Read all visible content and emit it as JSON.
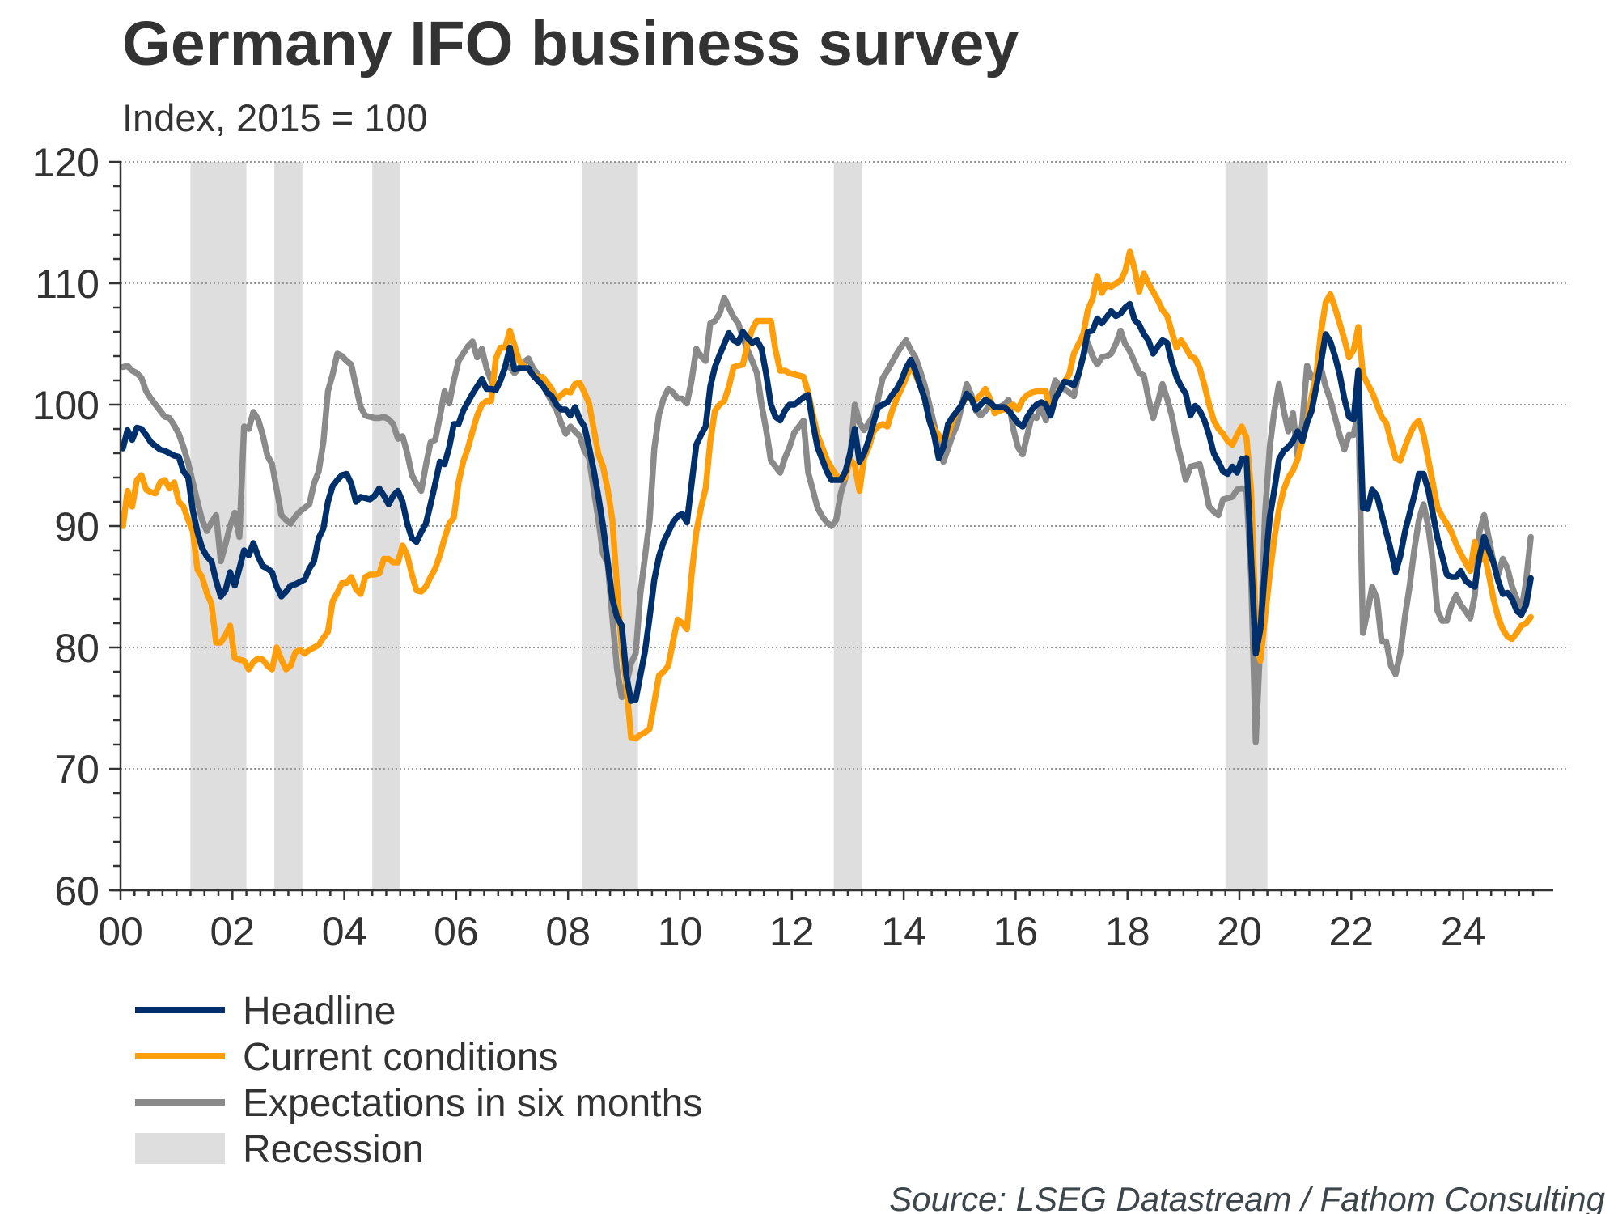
{
  "chart_data": {
    "type": "line",
    "title": "Germany IFO business survey",
    "subtitle": "Index, 2015 = 100",
    "source": "Source: LSEG Datastream / Fathom Consulting",
    "xlabel": "",
    "ylabel": "",
    "x_start": "2000-01",
    "x_frequency": "monthly",
    "xlim": [
      2000.0,
      2025.9
    ],
    "ylim": [
      60,
      120
    ],
    "grid": true,
    "legend_position": "bottom-left",
    "y_ticks": [
      60,
      70,
      80,
      90,
      100,
      110,
      120
    ],
    "y_tick_labels": [
      "60",
      "70",
      "80",
      "90",
      "100",
      "110",
      "120"
    ],
    "y_minor_step": 2,
    "x_ticks": [
      2000,
      2002,
      2004,
      2006,
      2008,
      2010,
      2012,
      2014,
      2016,
      2018,
      2020,
      2022,
      2024
    ],
    "x_tick_labels": [
      "00",
      "02",
      "04",
      "06",
      "08",
      "10",
      "12",
      "14",
      "16",
      "18",
      "20",
      "22",
      "24"
    ],
    "x_minor_step": 0.25,
    "recessions": [
      {
        "start": 2001.25,
        "end": 2002.25
      },
      {
        "start": 2002.75,
        "end": 2003.25
      },
      {
        "start": 2004.5,
        "end": 2005.0
      },
      {
        "start": 2008.25,
        "end": 2009.25
      },
      {
        "start": 2012.75,
        "end": 2013.25
      },
      {
        "start": 2019.75,
        "end": 2020.5
      }
    ],
    "series": [
      {
        "name": "Headline",
        "color": "#00306b",
        "values": [
          96.4,
          97.9,
          97.1,
          98.1,
          98.0,
          97.5,
          96.9,
          96.6,
          96.3,
          96.2,
          96.0,
          95.8,
          95.7,
          94.5,
          94.0,
          91.3,
          89.5,
          88.2,
          87.5,
          87.1,
          85.5,
          84.2,
          84.7,
          86.2,
          85.1,
          86.5,
          88.0,
          87.6,
          88.6,
          87.5,
          86.7,
          86.5,
          86.2,
          85.0,
          84.2,
          84.6,
          85.1,
          85.2,
          85.4,
          85.6,
          86.5,
          87.1,
          89.0,
          89.8,
          92.0,
          93.3,
          93.8,
          94.2,
          94.3,
          93.5,
          92.0,
          92.4,
          92.3,
          92.2,
          92.5,
          93.1,
          92.5,
          91.8,
          92.5,
          92.9,
          92.0,
          90.2,
          89.0,
          88.7,
          89.5,
          90.2,
          91.8,
          93.5,
          95.3,
          95.1,
          96.5,
          98.4,
          98.4,
          99.5,
          100.2,
          100.9,
          101.5,
          102.1,
          101.3,
          101.3,
          101.2,
          102.0,
          103.1,
          104.7,
          102.9,
          103.0,
          103.0,
          103.0,
          102.4,
          102.0,
          101.6,
          101.0,
          100.7,
          100.0,
          99.6,
          99.6,
          99.1,
          99.8,
          98.8,
          98.2,
          96.5,
          94.6,
          92.4,
          90.0,
          87.0,
          84.0,
          82.5,
          81.8,
          77.7,
          75.6,
          75.7,
          77.7,
          79.7,
          82.5,
          85.6,
          87.5,
          88.7,
          89.5,
          90.3,
          90.8,
          91.0,
          90.3,
          93.5,
          96.7,
          97.5,
          98.2,
          101.5,
          103.1,
          104.1,
          105.0,
          105.9,
          105.3,
          105.1,
          106.0,
          105.5,
          105.1,
          105.3,
          104.6,
          102.5,
          100.0,
          99.0,
          98.7,
          99.5,
          100.0,
          100.0,
          100.3,
          100.6,
          100.8,
          98.5,
          96.5,
          95.5,
          94.5,
          93.8,
          93.8,
          93.8,
          94.5,
          96.0,
          98.0,
          95.3,
          96.0,
          97.1,
          98.5,
          99.8,
          100.0,
          100.2,
          100.8,
          101.3,
          102.0,
          103.0,
          103.7,
          102.8,
          101.6,
          100.5,
          98.7,
          97.5,
          95.6,
          96.5,
          98.4,
          99.0,
          99.5,
          100.0,
          100.9,
          100.5,
          99.6,
          100.0,
          100.4,
          100.2,
          99.8,
          99.8,
          99.8,
          99.5,
          99.0,
          98.5,
          98.2,
          99.0,
          99.6,
          100.0,
          100.2,
          100.0,
          99.1,
          100.5,
          101.2,
          101.9,
          101.8,
          101.6,
          102.5,
          104.0,
          106.0,
          106.1,
          107.1,
          106.7,
          107.2,
          107.7,
          107.3,
          107.5,
          108.0,
          108.3,
          107.0,
          106.6,
          105.8,
          105.3,
          104.2,
          104.8,
          105.3,
          105.1,
          103.5,
          102.3,
          101.5,
          100.9,
          99.1,
          99.9,
          99.5,
          98.7,
          97.5,
          96.0,
          95.3,
          94.5,
          94.3,
          94.9,
          94.4,
          95.5,
          95.6,
          87.5,
          79.5,
          81.5,
          86.5,
          90.7,
          93.0,
          95.5,
          96.2,
          96.5,
          97.0,
          97.8,
          97.0,
          98.5,
          99.5,
          101.5,
          103.5,
          105.8,
          105.2,
          104.0,
          102.5,
          100.5,
          99.0,
          98.8,
          102.8,
          91.5,
          91.4,
          93.0,
          92.5,
          91.0,
          89.5,
          88.0,
          86.2,
          87.5,
          89.5,
          91.0,
          92.5,
          94.3,
          94.3,
          93.0,
          91.0,
          89.0,
          87.5,
          86.0,
          85.8,
          85.8,
          86.3,
          85.5,
          85.2,
          85.0,
          87.5,
          89.1,
          88.0,
          87.0,
          85.5,
          84.4,
          84.5,
          84.0,
          83.0,
          82.7,
          83.5,
          85.7
        ]
      },
      {
        "name": "Current conditions",
        "color": "#ff9e0b",
        "values": [
          90.0,
          92.9,
          91.6,
          93.8,
          94.2,
          93.0,
          92.8,
          92.7,
          93.6,
          93.8,
          93.1,
          93.6,
          92.0,
          91.6,
          90.5,
          89.6,
          86.4,
          85.8,
          84.5,
          83.6,
          80.4,
          80.4,
          81.0,
          81.8,
          79.1,
          79.0,
          78.9,
          78.2,
          78.8,
          79.1,
          79.0,
          78.5,
          78.2,
          80.0,
          79.0,
          78.2,
          78.5,
          79.6,
          79.8,
          79.5,
          79.8,
          80.0,
          80.2,
          80.8,
          81.3,
          83.8,
          84.5,
          85.3,
          85.3,
          85.8,
          84.8,
          84.4,
          85.8,
          86.0,
          86.0,
          86.1,
          87.3,
          87.3,
          87.0,
          87.0,
          88.4,
          87.6,
          86.0,
          84.7,
          84.6,
          85.0,
          85.8,
          86.5,
          87.6,
          89.0,
          90.2,
          90.7,
          93.6,
          95.3,
          96.4,
          97.8,
          99.1,
          100.0,
          100.3,
          100.3,
          103.8,
          104.7,
          104.7,
          106.1,
          104.9,
          103.6,
          103.2,
          102.9,
          102.5,
          102.2,
          102.3,
          101.8,
          101.3,
          100.4,
          100.8,
          101.1,
          101.0,
          101.7,
          101.8,
          101.0,
          100.1,
          98.0,
          95.9,
          94.9,
          93.0,
          90.5,
          85.0,
          80.0,
          76.9,
          72.6,
          72.5,
          72.8,
          73.0,
          73.3,
          75.5,
          77.7,
          78.0,
          78.5,
          80.5,
          82.3,
          82.0,
          81.5,
          86.0,
          89.5,
          91.5,
          93.1,
          97.0,
          99.5,
          100.0,
          100.3,
          101.5,
          103.1,
          103.2,
          103.3,
          105.0,
          106.2,
          106.9,
          106.9,
          106.9,
          106.9,
          104.5,
          102.8,
          102.8,
          102.6,
          102.5,
          102.4,
          102.3,
          101.0,
          99.2,
          97.5,
          96.5,
          95.5,
          94.8,
          94.2,
          93.8,
          94.0,
          95.5,
          95.0,
          92.9,
          95.6,
          96.5,
          97.8,
          98.2,
          98.4,
          98.2,
          99.5,
          100.5,
          101.3,
          102.2,
          103.2,
          102.5,
          101.6,
          100.5,
          98.7,
          98.0,
          97.5,
          96.9,
          97.5,
          98.7,
          99.5,
          100.0,
          100.7,
          100.5,
          100.4,
          100.8,
          101.3,
          100.5,
          99.3,
          99.5,
          99.6,
          99.8,
          100.0,
          99.6,
          100.4,
          100.8,
          101.0,
          101.1,
          101.1,
          101.1,
          99.3,
          100.5,
          101.3,
          101.9,
          102.5,
          104.2,
          105.0,
          105.8,
          107.8,
          108.7,
          110.6,
          109.2,
          109.9,
          109.7,
          110.0,
          110.2,
          111.0,
          112.6,
          111.2,
          109.3,
          110.8,
          110.0,
          109.3,
          108.6,
          107.8,
          107.3,
          106.0,
          104.7,
          105.3,
          104.7,
          104.0,
          103.8,
          103.0,
          101.6,
          100.0,
          98.7,
          98.0,
          97.6,
          97.0,
          96.7,
          97.5,
          98.2,
          97.3,
          93.0,
          82.0,
          78.9,
          82.5,
          86.0,
          89.0,
          91.4,
          93.0,
          94.0,
          94.6,
          95.5,
          97.0,
          98.5,
          100.7,
          102.5,
          106.0,
          108.4,
          109.1,
          108.0,
          106.7,
          105.4,
          103.9,
          104.5,
          106.4,
          102.5,
          101.7,
          101.0,
          100.0,
          99.0,
          98.5,
          97.0,
          95.6,
          95.4,
          96.5,
          97.5,
          98.3,
          98.7,
          97.5,
          95.5,
          93.5,
          91.5,
          90.8,
          90.2,
          89.5,
          88.5,
          87.7,
          87.0,
          86.3,
          88.7,
          87.1,
          87.8,
          86.0,
          84.0,
          82.5,
          81.5,
          80.9,
          80.7,
          81.2,
          81.8,
          82.0,
          82.5
        ]
      },
      {
        "name": "Expectations in six months",
        "color": "#8a8a8a",
        "values": [
          103.1,
          103.2,
          102.8,
          102.6,
          102.2,
          101.1,
          100.5,
          100.0,
          99.5,
          99.0,
          98.9,
          98.3,
          97.6,
          96.5,
          95.2,
          93.6,
          92.0,
          90.5,
          89.6,
          90.3,
          90.9,
          87.1,
          88.5,
          90.0,
          91.1,
          89.1,
          98.2,
          98.0,
          99.4,
          98.8,
          97.5,
          95.8,
          95.1,
          93.0,
          90.9,
          90.5,
          90.2,
          90.8,
          91.2,
          91.5,
          91.8,
          93.5,
          94.5,
          96.9,
          101.1,
          102.5,
          104.2,
          104.0,
          103.6,
          103.3,
          101.5,
          99.8,
          99.1,
          99.0,
          98.9,
          98.9,
          99.0,
          98.8,
          98.4,
          97.2,
          97.4,
          96.0,
          94.2,
          93.5,
          92.9,
          95.0,
          96.9,
          97.1,
          99.0,
          101.1,
          100.1,
          102.0,
          103.6,
          104.2,
          104.8,
          105.2,
          103.9,
          104.6,
          103.0,
          102.0,
          101.3,
          102.0,
          103.1,
          103.1,
          102.6,
          103.0,
          103.5,
          103.8,
          103.0,
          102.5,
          101.8,
          101.0,
          100.2,
          99.6,
          98.5,
          97.6,
          98.2,
          97.8,
          97.4,
          96.2,
          95.6,
          93.0,
          90.5,
          87.7,
          86.9,
          82.5,
          78.2,
          75.9,
          77.0,
          78.7,
          79.5,
          84.4,
          87.5,
          90.5,
          96.4,
          99.2,
          100.5,
          101.3,
          101.0,
          100.5,
          100.5,
          100.1,
          102.0,
          104.6,
          104.0,
          103.6,
          106.7,
          106.9,
          107.5,
          108.8,
          108.0,
          107.2,
          106.7,
          105.5,
          104.5,
          103.6,
          102.6,
          100.0,
          97.9,
          95.4,
          94.9,
          94.4,
          95.6,
          96.5,
          97.7,
          98.2,
          98.7,
          94.4,
          93.0,
          91.5,
          90.8,
          90.3,
          90.0,
          90.5,
          92.7,
          94.0,
          95.6,
          100.0,
          98.5,
          97.9,
          98.5,
          99.1,
          100.5,
          102.2,
          102.8,
          103.5,
          104.2,
          104.8,
          105.3,
          104.5,
          103.9,
          102.8,
          101.6,
          100.0,
          98.4,
          96.8,
          95.3,
          96.4,
          97.5,
          98.4,
          100.0,
          101.7,
          100.8,
          99.5,
          99.1,
          99.5,
          100.0,
          99.8,
          99.8,
          100.0,
          100.4,
          98.0,
          96.5,
          95.9,
          97.5,
          99.1,
          98.9,
          99.8,
          98.7,
          100.5,
          102.0,
          101.5,
          101.3,
          101.0,
          100.7,
          102.5,
          104.0,
          105.1,
          104.0,
          103.3,
          103.9,
          104.0,
          104.2,
          105.0,
          106.1,
          105.0,
          104.4,
          103.5,
          102.6,
          102.4,
          100.5,
          98.9,
          100.2,
          101.7,
          100.5,
          99.1,
          97.1,
          95.5,
          93.8,
          94.9,
          95.0,
          95.1,
          93.5,
          91.6,
          91.2,
          90.9,
          92.2,
          92.3,
          92.4,
          93.0,
          93.1,
          93.0,
          86.0,
          72.2,
          80.5,
          91.0,
          96.5,
          99.5,
          101.7,
          99.5,
          97.8,
          99.3,
          95.7,
          98.5,
          103.2,
          102.2,
          102.5,
          103.0,
          101.5,
          100.4,
          99.0,
          97.5,
          96.3,
          97.5,
          97.5,
          99.5,
          81.2,
          83.0,
          85.0,
          84.0,
          80.5,
          80.5,
          78.5,
          77.8,
          79.5,
          82.5,
          85.0,
          88.0,
          90.5,
          91.8,
          90.0,
          87.0,
          83.0,
          82.2,
          82.2,
          83.5,
          84.3,
          83.5,
          83.0,
          82.4,
          84.3,
          89.5,
          90.9,
          89.0,
          87.0,
          86.0,
          87.3,
          86.5,
          85.0,
          84.0,
          83.0,
          85.5,
          89.1
        ]
      }
    ],
    "legend": [
      {
        "label": "Headline",
        "kind": "line",
        "color": "#00306b"
      },
      {
        "label": "Current conditions",
        "kind": "line",
        "color": "#ff9e0b"
      },
      {
        "label": "Expectations in six months",
        "kind": "line",
        "color": "#8a8a8a"
      },
      {
        "label": "Recession",
        "kind": "area",
        "color": "#dedede"
      }
    ]
  }
}
